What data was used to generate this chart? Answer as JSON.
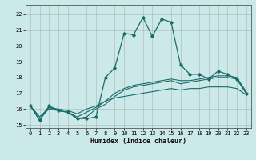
{
  "xlabel": "Humidex (Indice chaleur)",
  "ylabel": "",
  "xlim": [
    -0.5,
    23.5
  ],
  "ylim": [
    14.8,
    22.6
  ],
  "yticks": [
    15,
    16,
    17,
    18,
    19,
    20,
    21,
    22
  ],
  "xticks": [
    0,
    1,
    2,
    3,
    4,
    5,
    6,
    7,
    8,
    9,
    10,
    11,
    12,
    13,
    14,
    15,
    16,
    17,
    18,
    19,
    20,
    21,
    22,
    23
  ],
  "bg_color": "#cce9e9",
  "grid_color": "#b0b0b0",
  "line_color": "#1a6b6b",
  "lines": [
    {
      "x": [
        0,
        1,
        2,
        3,
        4,
        5,
        6,
        7,
        8,
        9,
        10,
        11,
        12,
        13,
        14,
        15,
        16,
        17,
        18,
        19,
        20,
        21,
        22,
        23
      ],
      "y": [
        16.2,
        15.3,
        16.2,
        15.9,
        15.8,
        15.4,
        15.4,
        15.5,
        18.0,
        18.6,
        20.8,
        20.7,
        21.8,
        20.6,
        21.7,
        21.5,
        18.8,
        18.2,
        18.2,
        17.9,
        18.4,
        18.2,
        17.9,
        17.0
      ],
      "marker": true
    },
    {
      "x": [
        0,
        1,
        2,
        3,
        4,
        5,
        6,
        7,
        8,
        9,
        10,
        11,
        12,
        13,
        14,
        15,
        16,
        17,
        18,
        19,
        20,
        21,
        22,
        23
      ],
      "y": [
        16.2,
        15.3,
        16.1,
        15.9,
        15.8,
        15.4,
        15.5,
        16.0,
        16.3,
        16.8,
        17.2,
        17.4,
        17.5,
        17.6,
        17.7,
        17.8,
        17.6,
        17.7,
        17.8,
        17.9,
        18.0,
        18.0,
        17.9,
        17.0
      ],
      "marker": false
    },
    {
      "x": [
        0,
        1,
        2,
        3,
        4,
        5,
        6,
        7,
        8,
        9,
        10,
        11,
        12,
        13,
        14,
        15,
        16,
        17,
        18,
        19,
        20,
        21,
        22,
        23
      ],
      "y": [
        16.2,
        15.5,
        16.0,
        15.9,
        15.8,
        15.5,
        15.8,
        16.1,
        16.5,
        17.0,
        17.3,
        17.5,
        17.6,
        17.7,
        17.8,
        17.9,
        17.8,
        17.8,
        17.9,
        18.0,
        18.1,
        18.1,
        18.0,
        17.1
      ],
      "marker": false
    },
    {
      "x": [
        0,
        1,
        2,
        3,
        4,
        5,
        6,
        7,
        8,
        9,
        10,
        11,
        12,
        13,
        14,
        15,
        16,
        17,
        18,
        19,
        20,
        21,
        22,
        23
      ],
      "y": [
        16.2,
        15.5,
        16.1,
        16.0,
        15.9,
        15.7,
        16.0,
        16.2,
        16.5,
        16.7,
        16.8,
        16.9,
        17.0,
        17.1,
        17.2,
        17.3,
        17.2,
        17.3,
        17.3,
        17.4,
        17.4,
        17.4,
        17.3,
        16.9
      ],
      "marker": false
    }
  ]
}
